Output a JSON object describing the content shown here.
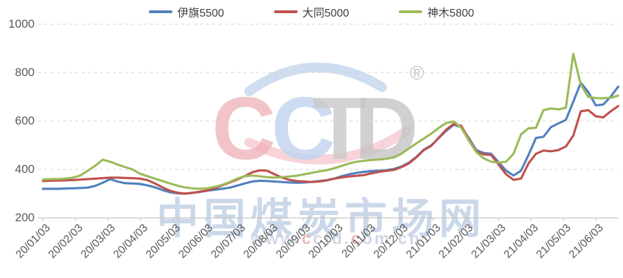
{
  "legend": {
    "items": [
      {
        "label": "伊旗5500",
        "color": "#4F81BD"
      },
      {
        "label": "大同5000",
        "color": "#C0504D"
      },
      {
        "label": "神木5800",
        "color": "#9BBB59"
      }
    ]
  },
  "watermark": {
    "logo_letters": [
      {
        "char": "C",
        "color": "#f0b6bc"
      },
      {
        "char": "C",
        "color": "#c0d3ee"
      },
      {
        "char": "T",
        "color": "#c9c9c9"
      },
      {
        "char": "D",
        "color": "#c5c5c5"
      }
    ],
    "registered_mark": "®",
    "site_name": "中国煤炭市场网",
    "site_url_segments": [
      {
        "text": "www.",
        "color": "#b7c3d6"
      },
      {
        "text": "c",
        "color": "#dc9694"
      },
      {
        "text": "ctd.",
        "color": "#b7c3d6"
      },
      {
        "text": "c",
        "color": "#dc9694"
      },
      {
        "text": "om.cn",
        "color": "#b7c3d6"
      }
    ]
  },
  "chart_data": {
    "type": "line",
    "title": "",
    "xlabel": "",
    "ylabel": "",
    "x_axis": {
      "tick_labels": [
        "20/01/03",
        "20/02/03",
        "20/03/03",
        "20/04/03",
        "20/05/03",
        "20/06/03",
        "20/07/03",
        "20/08/03",
        "20/09/03",
        "20/10/03",
        "20/11/03",
        "20/12/03",
        "21/01/03",
        "21/02/03",
        "21/03/03",
        "21/04/03",
        "21/05/03",
        "21/06/03"
      ],
      "note": "weekly data points from 20/01/03 to 21/06/25"
    },
    "y_axis": {
      "min": 200,
      "max": 1000,
      "ticks": [
        200,
        400,
        600,
        800,
        1000
      ]
    },
    "grid": "dashed horizontal",
    "legend_position": "top",
    "series": [
      {
        "name": "伊旗5500",
        "color": "#4F81BD",
        "values": [
          320,
          320,
          320,
          321,
          322,
          323,
          325,
          332,
          345,
          360,
          350,
          343,
          342,
          340,
          334,
          326,
          315,
          306,
          301,
          300,
          303,
          307,
          312,
          316,
          320,
          325,
          333,
          342,
          350,
          353,
          352,
          350,
          348,
          346,
          345,
          346,
          349,
          352,
          356,
          362,
          372,
          380,
          386,
          390,
          393,
          395,
          397,
          402,
          412,
          428,
          452,
          482,
          500,
          530,
          560,
          585,
          575,
          530,
          480,
          468,
          465,
          430,
          395,
          375,
          395,
          460,
          530,
          535,
          575,
          590,
          605,
          680,
          758,
          720,
          665,
          668,
          700,
          742
        ]
      },
      {
        "name": "大同5000",
        "color": "#C0504D",
        "values": [
          352,
          353,
          354,
          355,
          356,
          358,
          360,
          362,
          364,
          366,
          366,
          365,
          364,
          362,
          356,
          342,
          326,
          312,
          304,
          300,
          303,
          308,
          313,
          322,
          334,
          346,
          358,
          372,
          388,
          396,
          395,
          380,
          366,
          357,
          352,
          350,
          348,
          350,
          355,
          362,
          367,
          371,
          374,
          377,
          384,
          390,
          394,
          398,
          410,
          425,
          450,
          480,
          498,
          532,
          565,
          588,
          580,
          525,
          475,
          462,
          460,
          420,
          380,
          357,
          362,
          425,
          465,
          478,
          475,
          480,
          495,
          540,
          640,
          645,
          620,
          615,
          640,
          662
        ]
      },
      {
        "name": "神木5800",
        "color": "#9BBB59",
        "values": [
          358,
          360,
          360,
          362,
          366,
          375,
          395,
          415,
          440,
          432,
          420,
          410,
          400,
          382,
          372,
          362,
          352,
          342,
          333,
          326,
          322,
          320,
          322,
          328,
          336,
          348,
          362,
          372,
          375,
          372,
          368,
          366,
          368,
          371,
          374,
          380,
          386,
          392,
          397,
          405,
          415,
          425,
          432,
          436,
          439,
          441,
          444,
          450,
          465,
          487,
          508,
          528,
          548,
          572,
          592,
          598,
          572,
          520,
          472,
          446,
          432,
          428,
          432,
          465,
          545,
          570,
          572,
          645,
          652,
          648,
          655,
          878,
          750,
          700,
          695,
          694,
          696,
          705
        ]
      }
    ]
  }
}
